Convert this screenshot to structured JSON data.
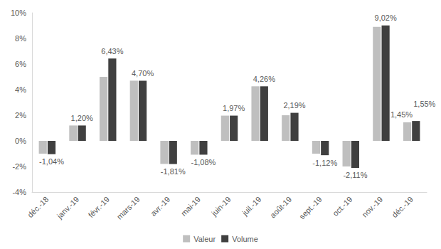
{
  "chart_data": {
    "type": "bar",
    "categories": [
      "déc.-18",
      "janv.-19",
      "févr.-19",
      "mars-19",
      "avr.-19",
      "mai-19",
      "juin-19",
      "juil.-19",
      "août-19",
      "sept.-19",
      "oct.-19",
      "nov.-19",
      "déc.-19"
    ],
    "series": [
      {
        "name": "Valeur",
        "color": "#bfbfbf",
        "values": [
          -1.0,
          1.2,
          5.0,
          4.7,
          -1.8,
          -1.08,
          1.97,
          4.26,
          2.0,
          -1.0,
          -2.0,
          8.9,
          1.45
        ],
        "value_labels": [
          null,
          null,
          null,
          null,
          null,
          null,
          null,
          null,
          null,
          null,
          null,
          null,
          "1,45%"
        ]
      },
      {
        "name": "Volume",
        "color": "#404040",
        "values": [
          -1.04,
          1.2,
          6.43,
          4.7,
          -1.81,
          -1.08,
          1.97,
          4.26,
          2.19,
          -1.12,
          -2.11,
          9.02,
          1.55
        ],
        "value_labels": [
          "-1,04%",
          "1,20%",
          "6,43%",
          "4,70%",
          "-1,81%",
          "-1,08%",
          "1,97%",
          "4,26%",
          "2,19%",
          "-1,12%",
          "-2,11%",
          "9,02%",
          "1,55%"
        ]
      }
    ],
    "ylim": [
      -4,
      10
    ],
    "yticks": [
      {
        "value": -4,
        "label": "-4%"
      },
      {
        "value": -2,
        "label": "-2%"
      },
      {
        "value": 0,
        "label": "0%"
      },
      {
        "value": 2,
        "label": "2%"
      },
      {
        "value": 4,
        "label": "4%"
      },
      {
        "value": 6,
        "label": "6%"
      },
      {
        "value": 8,
        "label": "8%"
      },
      {
        "value": 10,
        "label": "10%"
      }
    ],
    "grid": false,
    "legend": "bottom",
    "data_labels": true
  }
}
